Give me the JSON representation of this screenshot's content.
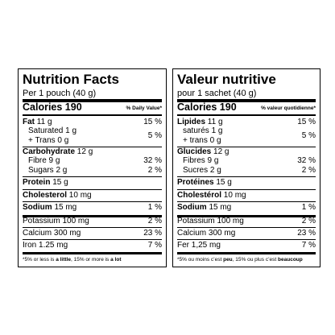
{
  "panels": [
    {
      "title": "Nutrition Facts",
      "serving": "Per 1 pouch (40 g)",
      "calories": "Calories 190",
      "dv_header": "% Daily Value*",
      "rows": [
        {
          "name": "Fat",
          "amount": "11 g",
          "dv": "15 %"
        },
        {
          "sub": [
            "Saturated 1 g",
            "+ Trans 0 g"
          ],
          "dv": "5 %"
        },
        {
          "name": "Carbohydrate",
          "amount": "12 g"
        },
        {
          "label": "Fibre 9 g",
          "dv": "32 %"
        },
        {
          "label": "Sugars 2 g",
          "dv": "2 %"
        },
        {
          "name": "Protein",
          "amount": "15 g"
        },
        {
          "name": "Cholesterol",
          "amount": "10 mg"
        },
        {
          "name": "Sodium",
          "amount": "15 mg",
          "dv": "1 %"
        },
        {
          "label": "Potassium 100 mg",
          "dv": "2 %"
        },
        {
          "label": "Calcium 300 mg",
          "dv": "23 %"
        },
        {
          "label": "Iron 1.25 mg",
          "dv": "7 %"
        }
      ],
      "footnote": [
        "*5% or less is ",
        "a little",
        ", 15% or more is ",
        "a lot"
      ]
    },
    {
      "title": "Valeur nutritive",
      "serving": "pour 1 sachet (40 g)",
      "calories": "Calories 190",
      "dv_header": "% valeur quotidienne*",
      "rows": [
        {
          "name": "Lipides",
          "amount": "11 g",
          "dv": "15 %"
        },
        {
          "sub": [
            "saturés 1 g",
            "+ trans 0 g"
          ],
          "dv": "5 %"
        },
        {
          "name": "Glucides",
          "amount": "12 g"
        },
        {
          "label": "Fibres 9 g",
          "dv": "32 %"
        },
        {
          "label": "Sucres 2 g",
          "dv": "2 %"
        },
        {
          "name": "Protéines",
          "amount": "15 g"
        },
        {
          "name": "Cholestérol",
          "amount": "10 mg"
        },
        {
          "name": "Sodium",
          "amount": "15 mg",
          "dv": "1 %"
        },
        {
          "label": "Potassium 100 mg",
          "dv": "2 %"
        },
        {
          "label": "Calcium 300 mg",
          "dv": "23 %"
        },
        {
          "label": "Fer 1,25 mg",
          "dv": "7 %"
        }
      ],
      "footnote": [
        "*5% ou moins c’est ",
        "peu",
        ", 15% ou plus c’est ",
        "beaucoup"
      ]
    }
  ]
}
